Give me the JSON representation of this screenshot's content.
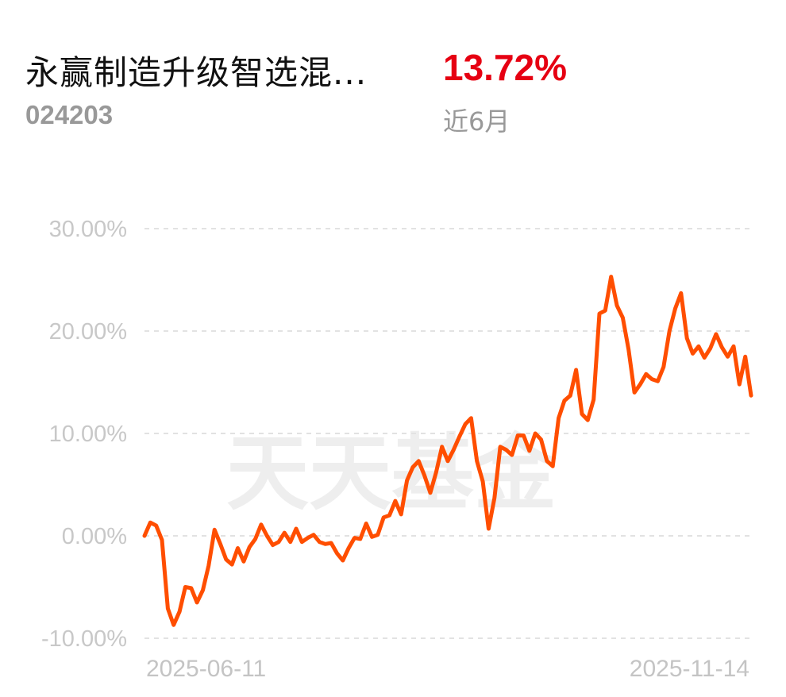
{
  "header": {
    "fund_name": "永赢制造升级智选混...",
    "fund_code": "024203",
    "return_value": "13.72%",
    "period_label": "近6月"
  },
  "watermark": "天天基金",
  "colors": {
    "line": "#ff4e00",
    "return_positive": "#e60012",
    "grid": "#e2e2e2",
    "tick_text": "#c8c8c8"
  },
  "chart_data": {
    "type": "line",
    "title": "",
    "xlabel": "",
    "ylabel": "",
    "ylim": [
      -10,
      30
    ],
    "yticks": [
      "30.00%",
      "20.00%",
      "10.00%",
      "0.00%",
      "-10.00%"
    ],
    "ytick_values": [
      30,
      20,
      10,
      0,
      -10
    ],
    "x_start_label": "2025-06-11",
    "x_end_label": "2025-11-14",
    "grid": true,
    "series": [
      {
        "values": [
          0.0,
          1.3,
          1.0,
          -0.4,
          -7.1,
          -8.7,
          -7.4,
          -5.0,
          -5.1,
          -6.5,
          -5.3,
          -2.9,
          0.6,
          -0.8,
          -2.3,
          -2.8,
          -1.2,
          -2.5,
          -1.1,
          -0.3,
          1.1,
          0.0,
          -0.9,
          -0.6,
          0.3,
          -0.6,
          0.7,
          -0.6,
          -0.2,
          0.1,
          -0.6,
          -0.8,
          -0.7,
          -1.7,
          -2.4,
          -1.2,
          -0.2,
          -0.3,
          1.2,
          -0.1,
          0.1,
          1.8,
          2.0,
          3.4,
          2.1,
          5.4,
          6.7,
          7.3,
          5.9,
          4.2,
          6.2,
          8.7,
          7.3,
          8.4,
          9.7,
          10.9,
          11.5,
          7.3,
          5.3,
          0.7,
          3.7,
          8.7,
          8.4,
          7.9,
          9.8,
          9.8,
          8.3,
          10.0,
          9.4,
          7.3,
          6.8,
          11.5,
          13.2,
          13.7,
          16.2,
          11.9,
          11.3,
          13.3,
          21.7,
          22.0,
          25.3,
          22.5,
          21.3,
          18.2,
          14.0,
          14.8,
          15.8,
          15.3,
          15.1,
          16.5,
          20.0,
          22.2,
          23.7,
          19.3,
          17.8,
          18.5,
          17.4,
          18.3,
          19.7,
          18.4,
          17.5,
          18.5,
          14.8,
          17.5,
          13.7
        ]
      }
    ]
  }
}
